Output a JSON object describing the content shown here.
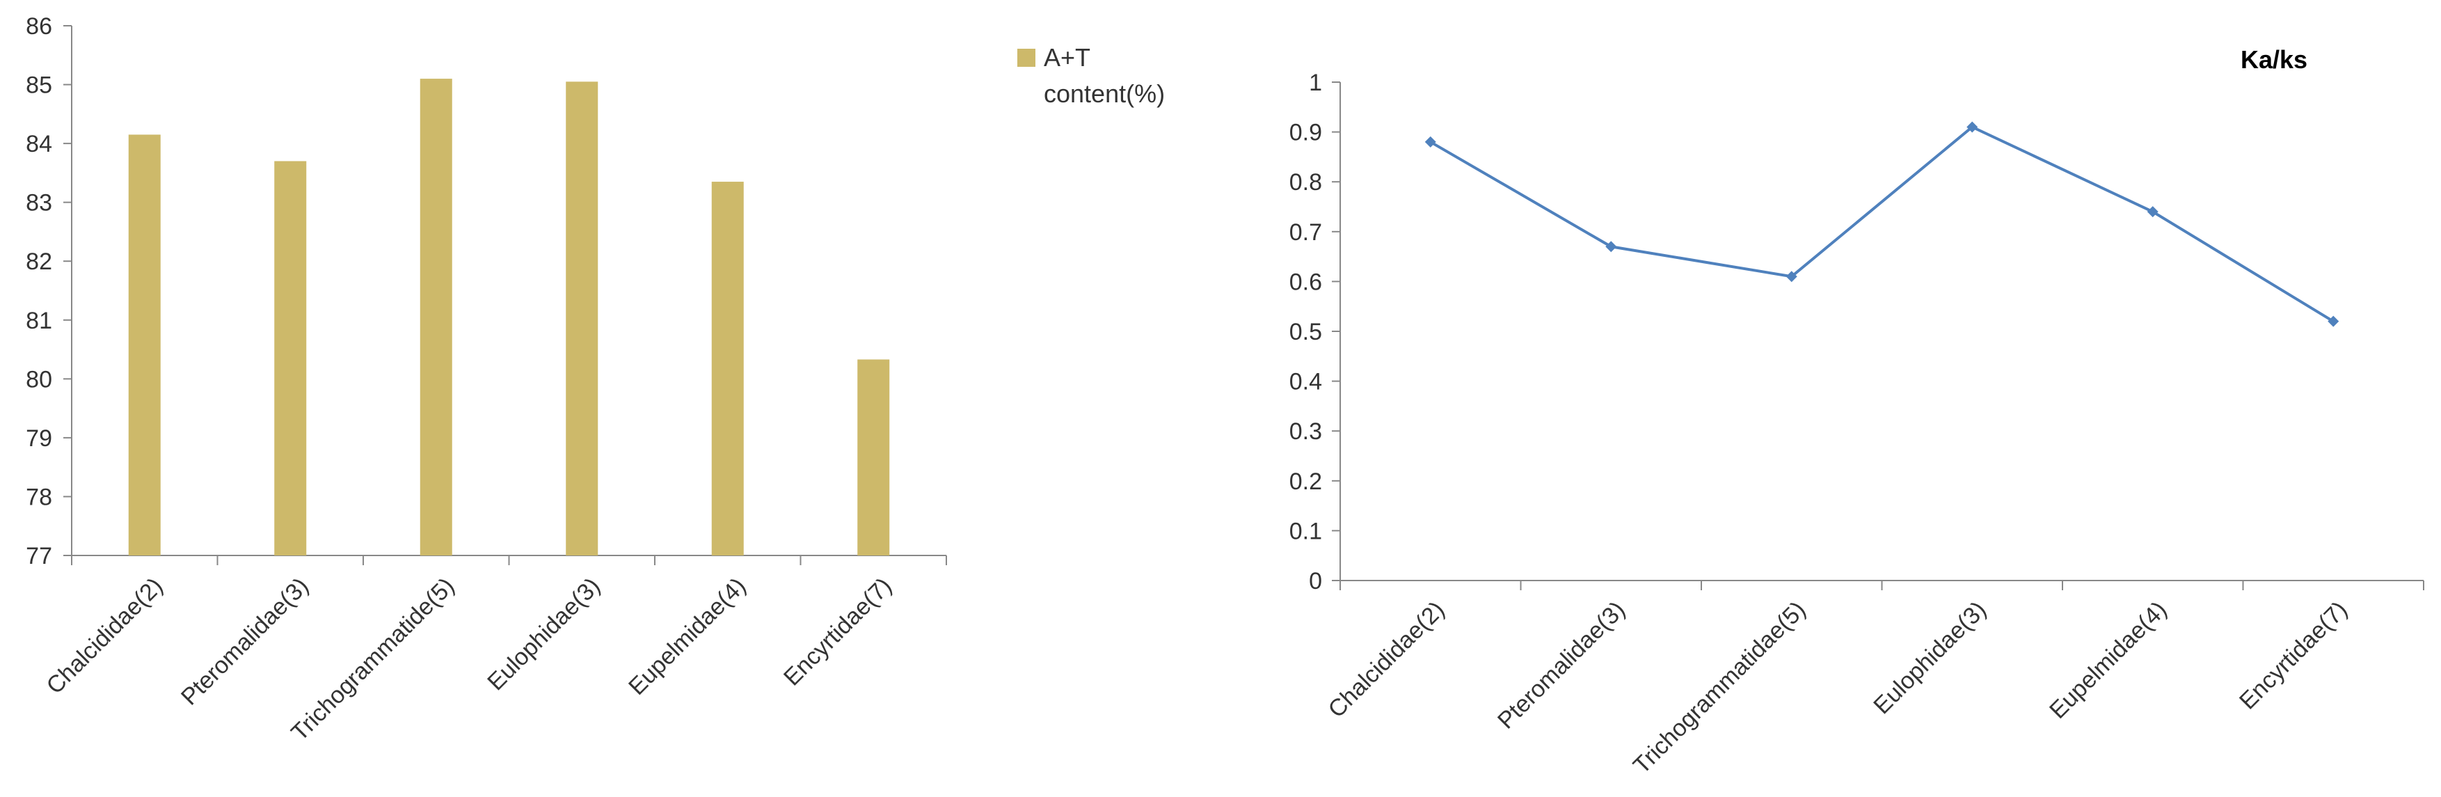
{
  "chart_data": [
    {
      "type": "bar",
      "categories": [
        "Chalcididae(2)",
        "Pteromalidae(3)",
        "Trichogrammatide(5)",
        "Eulophidae(3)",
        "Eupelmidae(4)",
        "Encyrtidae(7)"
      ],
      "series": [
        {
          "name": "A+T content(%)",
          "values": [
            84.15,
            83.7,
            85.1,
            85.05,
            83.35,
            80.33
          ]
        }
      ],
      "legend_lines": [
        "A+T",
        "content(%)"
      ],
      "legend_position": "right",
      "ylim": [
        77,
        86
      ],
      "yticks": [
        77,
        78,
        79,
        80,
        81,
        82,
        83,
        84,
        85,
        86
      ],
      "grid": false,
      "colors": {
        "bar": "#CDB96A",
        "axis": "#888888"
      }
    },
    {
      "type": "line",
      "title": "Ka/ks",
      "categories": [
        "Chalcididae(2)",
        "Pteromalidae(3)",
        "Trichogrammatidae(5)",
        "Eulophidae(3)",
        "Eupelmidae(4)",
        "Encyrtidae(7)"
      ],
      "series": [
        {
          "values": [
            0.88,
            0.67,
            0.61,
            0.91,
            0.74,
            0.52
          ]
        }
      ],
      "ylim": [
        0,
        1
      ],
      "yticks": [
        "0",
        "0.1",
        "0.2",
        "0.3",
        "0.4",
        "0.5",
        "0.6",
        "0.7",
        "0.8",
        "0.9",
        "1"
      ],
      "grid": false,
      "colors": {
        "line": "#4F81BD",
        "axis": "#888888"
      }
    }
  ]
}
